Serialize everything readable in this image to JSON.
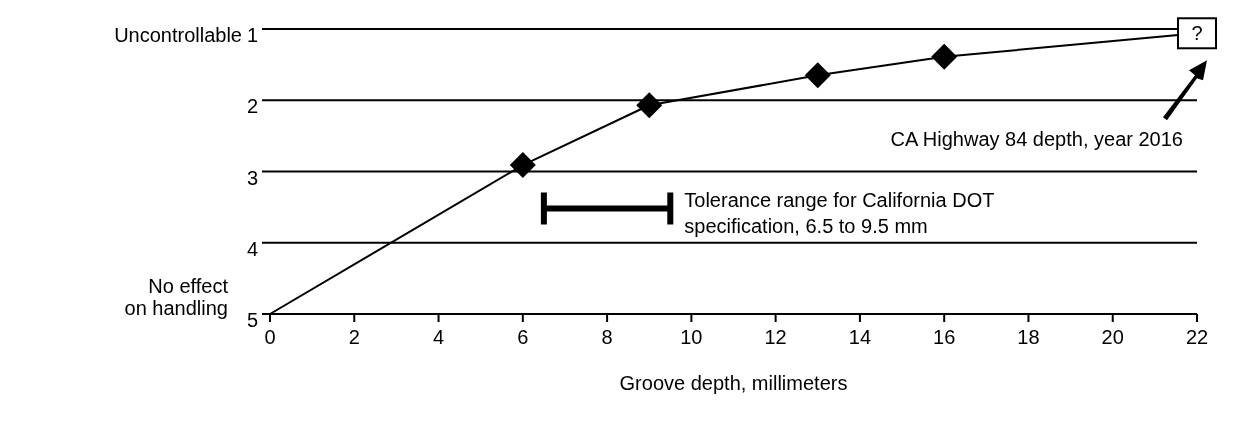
{
  "chart_data": {
    "type": "line",
    "xlabel": "Groove depth,  millimeters",
    "xlim": [
      0,
      22
    ],
    "xticks": [
      0,
      2,
      4,
      6,
      8,
      10,
      12,
      14,
      16,
      18,
      20,
      22
    ],
    "ylim": [
      5,
      1
    ],
    "yticks": [
      1,
      2,
      3,
      4,
      5
    ],
    "grid": "y",
    "series": [
      {
        "color": "#000000",
        "marker": "none",
        "x": [
          0,
          6,
          9,
          13,
          16,
          22
        ],
        "values": [
          5,
          2.91,
          2.07,
          1.65,
          1.39,
          1.06
        ]
      },
      {
        "type": "scatter",
        "color": "#000000",
        "marker": "diamond",
        "x": [
          6,
          9,
          13,
          16
        ],
        "values": [
          2.91,
          2.07,
          1.65,
          1.39
        ]
      },
      {
        "type": "scatter",
        "color": "#000000",
        "marker": "square",
        "x": [
          22
        ],
        "values": [
          1.06
        ],
        "value_labels": [
          "?"
        ]
      },
      {
        "type": "line",
        "color": "#000000",
        "marker": "none",
        "x": [
          6.5,
          9.5
        ],
        "values": [
          3.52,
          3.52
        ]
      }
    ],
    "annotations": [
      "Uncontrollable",
      "No effect on handling",
      "CA Highway 84 depth, year 2016",
      {
        "text": "Tolerance range for California DOT specification, 6.5 to 9.5 mm",
        "x": 9.5,
        "y": 3.52
      }
    ]
  }
}
